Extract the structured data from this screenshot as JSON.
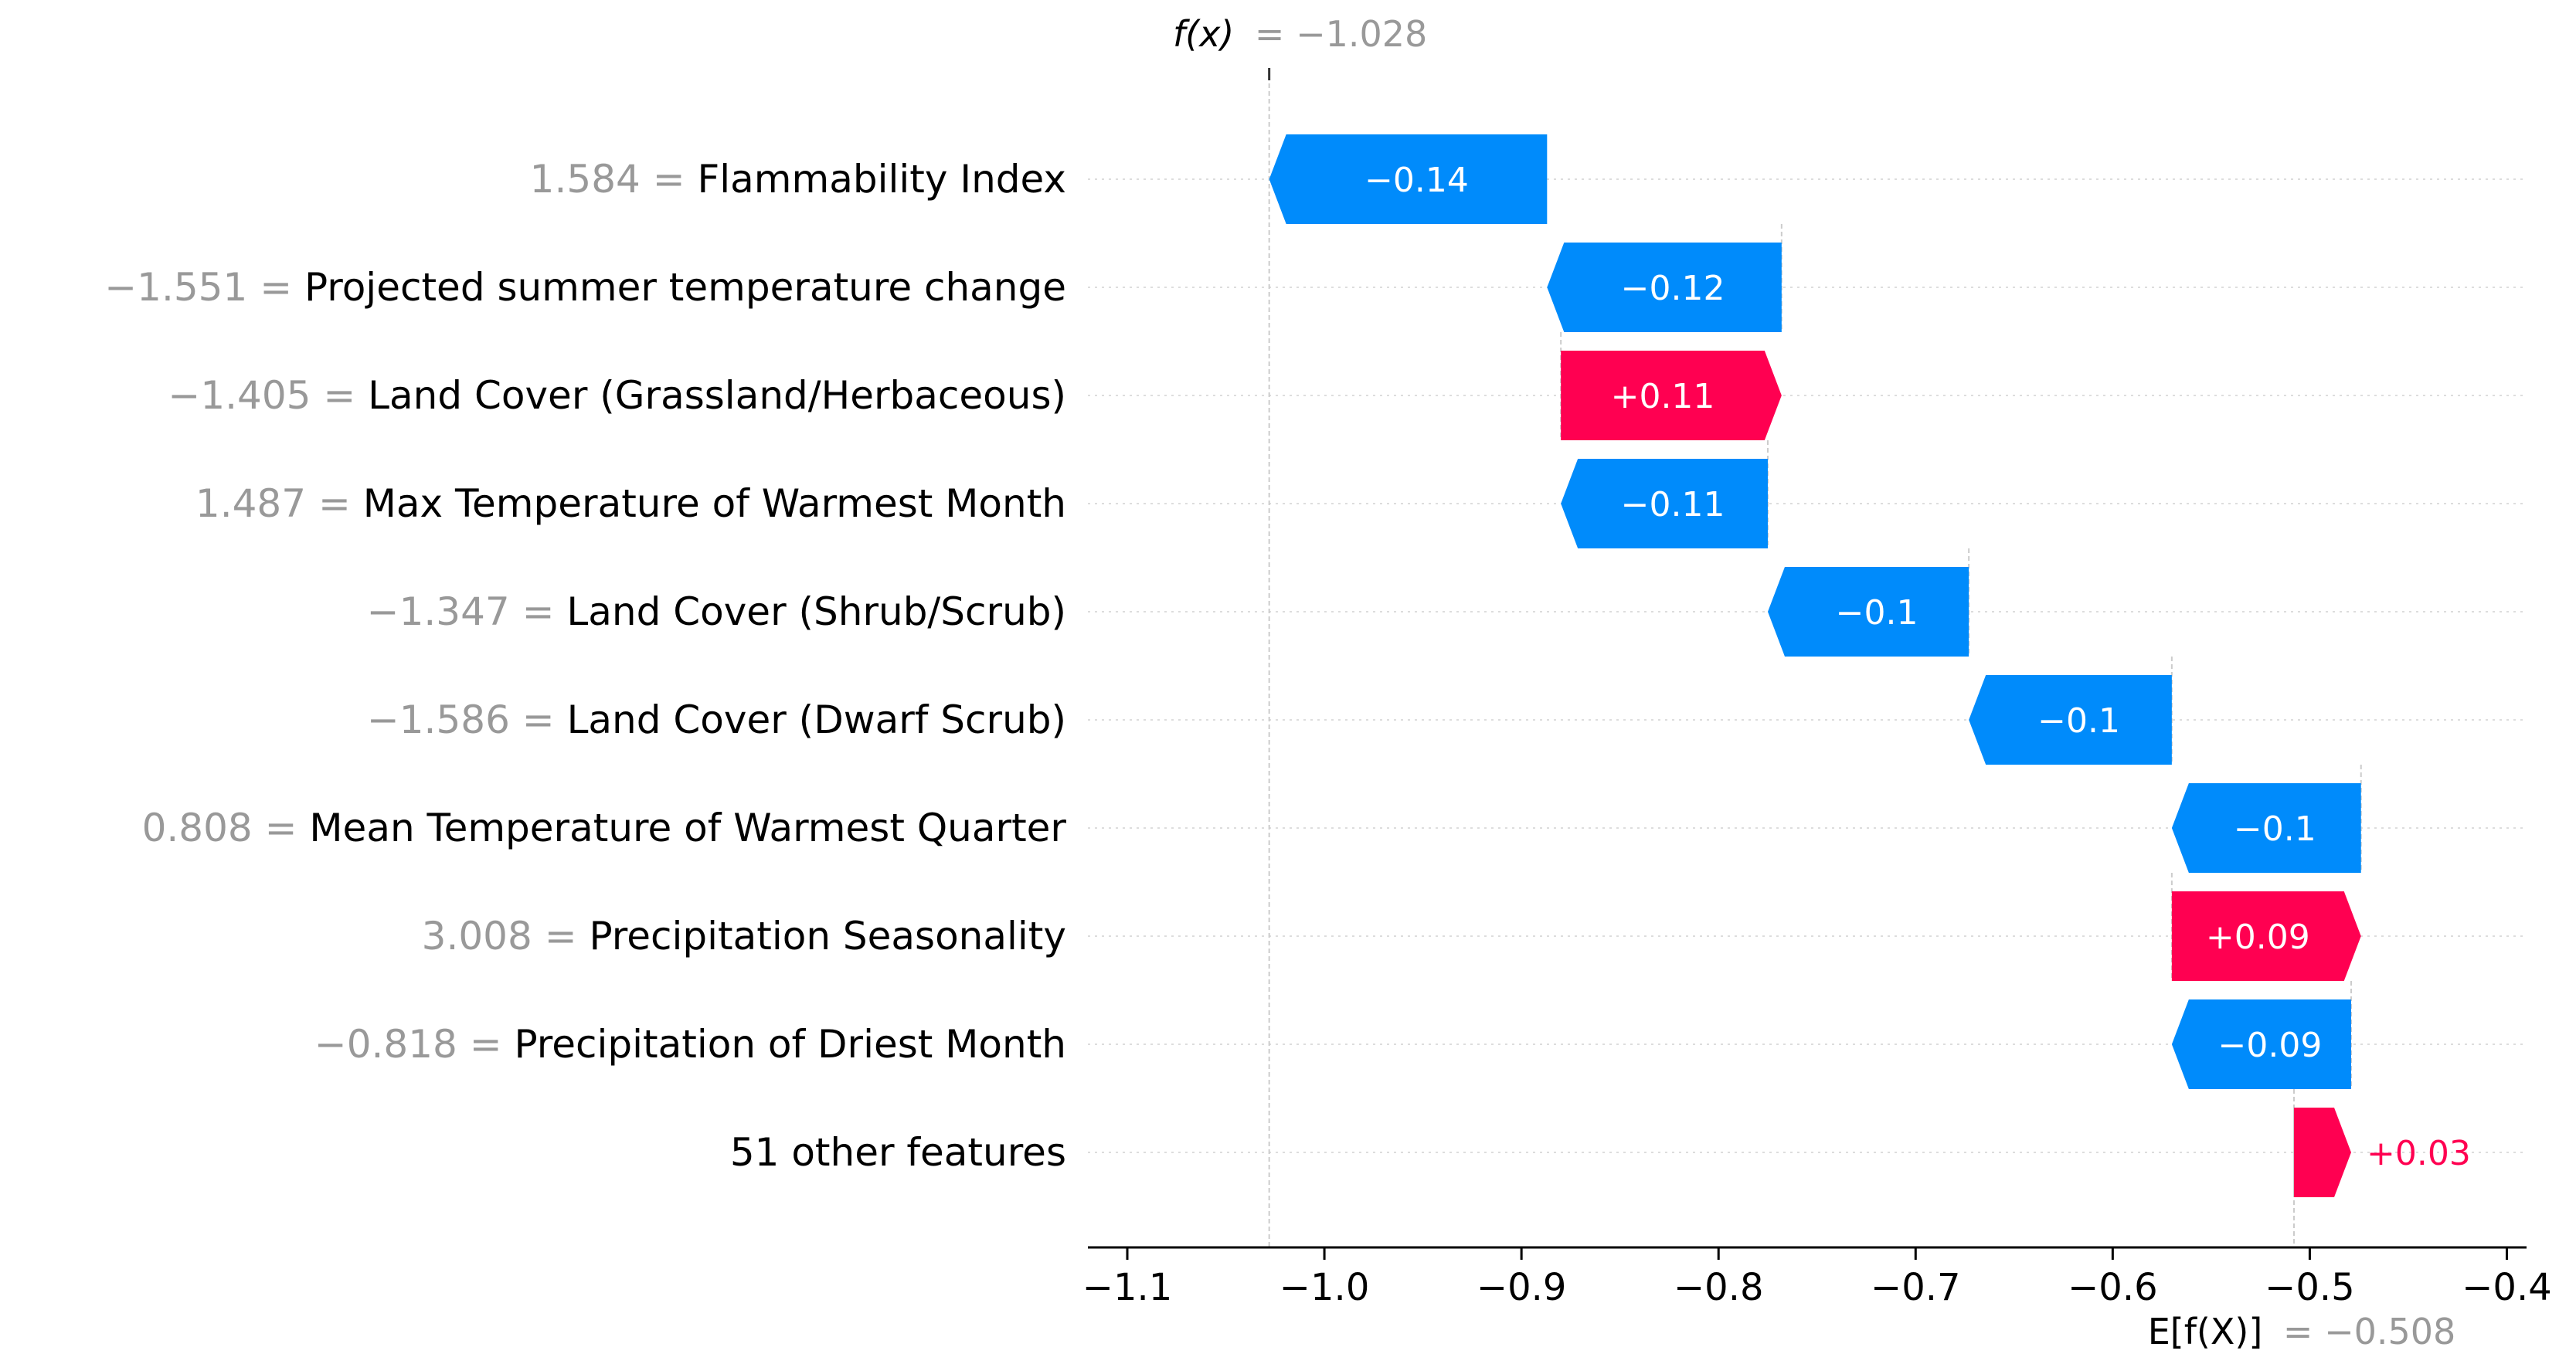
{
  "chart_data": {
    "type": "waterfall",
    "fx_label": "f(x)",
    "fx_value_text": "= −1.028",
    "fx": -1.028,
    "ex_label": "E[f(X)]",
    "ex_value_text": "= −0.508",
    "ex": -0.508,
    "xlim": [
      -1.12,
      -0.39
    ],
    "x_ticks": [
      -1.1,
      -1.0,
      -0.9,
      -0.8,
      -0.7,
      -0.6,
      -0.5,
      -0.4
    ],
    "x_tick_labels": [
      "−1.1",
      "−1.0",
      "−0.9",
      "−0.8",
      "−0.7",
      "−0.6",
      "−0.5",
      "−0.4"
    ],
    "rows": [
      {
        "feature_value": "1.584",
        "feature": "Flammability Index",
        "start": -0.887,
        "end": -1.028,
        "label": "−0.14"
      },
      {
        "feature_value": "−1.551",
        "feature": "Projected summer temperature change",
        "start": -0.768,
        "end": -0.887,
        "label": "−0.12"
      },
      {
        "feature_value": "−1.405",
        "feature": "Land Cover (Grassland/Herbaceous)",
        "start": -0.88,
        "end": -0.768,
        "label": "+0.11"
      },
      {
        "feature_value": "1.487",
        "feature": "Max Temperature of Warmest Month",
        "start": -0.775,
        "end": -0.88,
        "label": "−0.11"
      },
      {
        "feature_value": "−1.347",
        "feature": "Land Cover (Shrub/Scrub)",
        "start": -0.673,
        "end": -0.775,
        "label": "−0.1"
      },
      {
        "feature_value": "−1.586",
        "feature": "Land Cover (Dwarf Scrub)",
        "start": -0.57,
        "end": -0.673,
        "label": "−0.1"
      },
      {
        "feature_value": "0.808",
        "feature": "Mean Temperature of Warmest Quarter",
        "start": -0.474,
        "end": -0.57,
        "label": "−0.1"
      },
      {
        "feature_value": "3.008",
        "feature": "Precipitation Seasonality",
        "start": -0.57,
        "end": -0.474,
        "label": "+0.09"
      },
      {
        "feature_value": "−0.818",
        "feature": "Precipitation of Driest Month",
        "start": -0.479,
        "end": -0.57,
        "label": "−0.09"
      },
      {
        "feature_value": "",
        "feature": "51 other features",
        "start": -0.508,
        "end": -0.479,
        "label": "+0.03"
      }
    ],
    "colors": {
      "negative": "#008bfb",
      "positive": "#ff0051",
      "feature_value": "#999999",
      "text": "#000000",
      "gridline": "#cccccc"
    }
  }
}
